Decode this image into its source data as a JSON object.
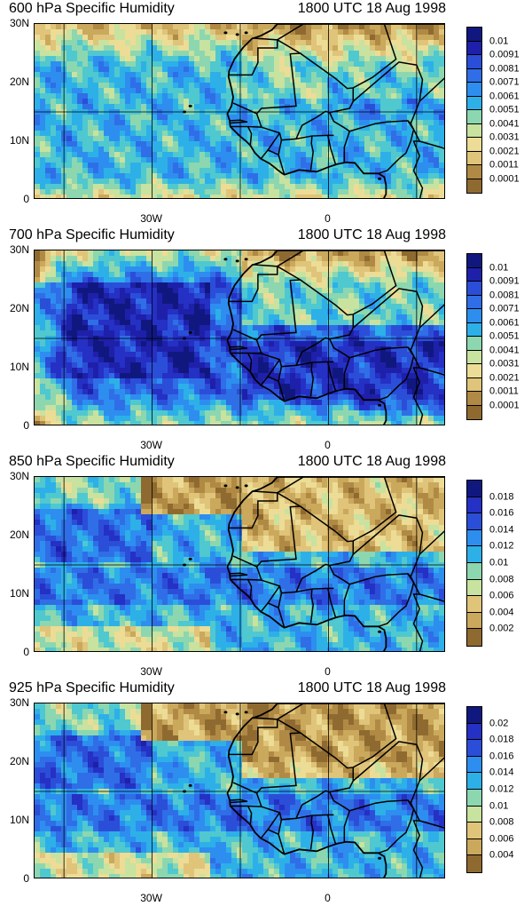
{
  "colors": [
    "#8f6a30",
    "#b08a44",
    "#caa85c",
    "#dfc47a",
    "#ecdc96",
    "#c8e2a0",
    "#8cd7b0",
    "#4fc8d0",
    "#2db0e8",
    "#2d8ef0",
    "#2f6ee6",
    "#2b4ed8",
    "#2530c4",
    "#1e20aa",
    "#101880"
  ],
  "panels": [
    {
      "title_left": "600 hPa Specific Humidity",
      "title_right": "1800 UTC 18 Aug 1998",
      "y_labels": [
        "30N",
        "20N",
        "10N",
        "0"
      ],
      "x_labels": [
        "30W",
        "0"
      ],
      "colorbar_labels": [
        "0.01",
        "0.0091",
        "0.0081",
        "0.0071",
        "0.0061",
        "0.0051",
        "0.0041",
        "0.0031",
        "0.0021",
        "0.0011",
        "0.0001"
      ],
      "field_min": 0.0001,
      "field_max": 0.0105
    },
    {
      "title_left": "700 hPa Specific Humidity",
      "title_right": "1800 UTC 18 Aug 1998",
      "y_labels": [
        "30N",
        "20N",
        "10N",
        "0"
      ],
      "x_labels": [
        "30W",
        "0"
      ],
      "colorbar_labels": [
        "0.01",
        "0.0091",
        "0.0081",
        "0.0071",
        "0.0061",
        "0.0051",
        "0.0041",
        "0.0031",
        "0.0021",
        "0.0011",
        "0.0001"
      ],
      "field_min": 0.0001,
      "field_max": 0.0105
    },
    {
      "title_left": "850 hPa Specific Humidity",
      "title_right": "1800 UTC 18 Aug 1998",
      "y_labels": [
        "30N",
        "20N",
        "10N",
        "0"
      ],
      "x_labels": [
        "30W",
        "0"
      ],
      "colorbar_labels": [
        "0.018",
        "0.016",
        "0.014",
        "0.012",
        "0.01",
        "0.008",
        "0.006",
        "0.004",
        "0.002"
      ],
      "field_min": 0.001,
      "field_max": 0.019
    },
    {
      "title_left": "925 hPa Specific Humidity",
      "title_right": "1800 UTC 18 Aug 1998",
      "y_labels": [
        "30N",
        "20N",
        "10N",
        "0"
      ],
      "x_labels": [
        "30W",
        "0"
      ],
      "colorbar_labels": [
        "0.02",
        "0.018",
        "0.016",
        "0.014",
        "0.012",
        "0.01",
        "0.008",
        "0.006",
        "0.004"
      ],
      "field_min": 0.003,
      "field_max": 0.021
    }
  ],
  "map_extent": {
    "lon_min": -50,
    "lon_max": 20,
    "lat_min": 0,
    "lat_max": 30
  },
  "gridlines": {
    "lons": [
      -45,
      -30,
      -15,
      0,
      15
    ],
    "lats": [
      15
    ]
  }
}
